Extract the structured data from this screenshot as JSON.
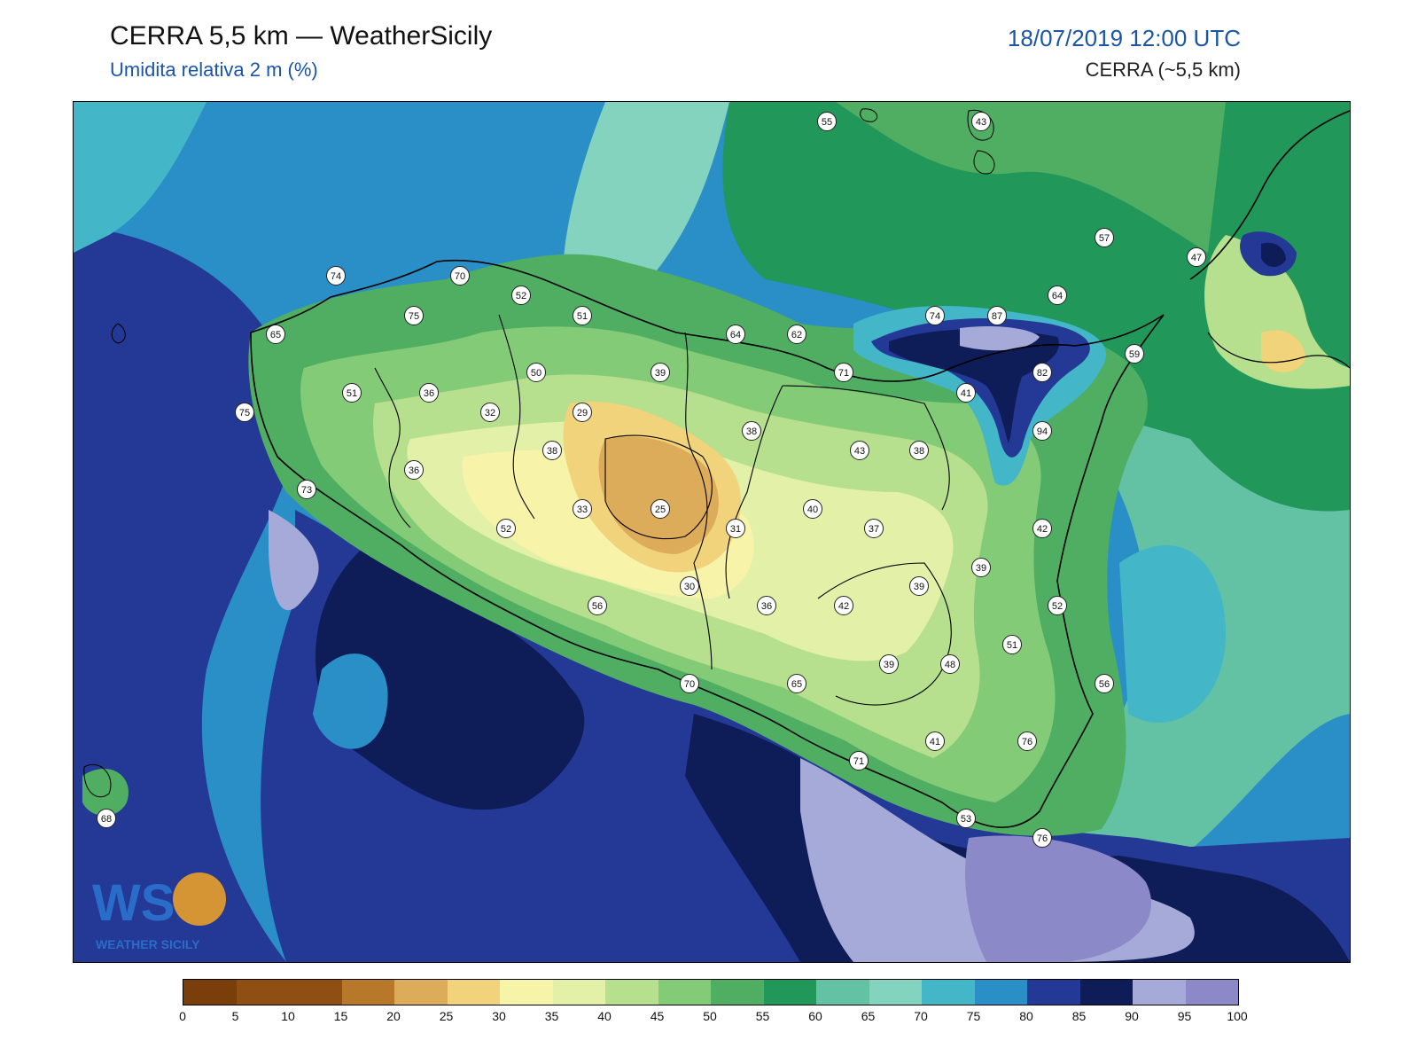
{
  "header": {
    "title": "CERRA 5,5 km — WeatherSicily",
    "subtitle": "Umidita relativa 2 m (%)",
    "datetime": "18/07/2019 12:00 UTC",
    "model": "CERRA (~5,5 km)"
  },
  "colorbar": {
    "ticks": [
      "0",
      "5",
      "10",
      "15",
      "20",
      "25",
      "30",
      "35",
      "40",
      "45",
      "50",
      "55",
      "60",
      "65",
      "70",
      "75",
      "80",
      "85",
      "90",
      "95",
      "100"
    ],
    "colors": [
      "#7a3e0a",
      "#8f4e12",
      "#8f4e12",
      "#b8782a",
      "#ddac5a",
      "#f0d37a",
      "#f7f3a8",
      "#e3f0a8",
      "#b6df8e",
      "#84cb78",
      "#4fae62",
      "#22975a",
      "#63c2a4",
      "#84d3be",
      "#43b6c7",
      "#2a8fc6",
      "#243896",
      "#0e1c58",
      "#a5aad9",
      "#8b89c7"
    ]
  },
  "logo": {
    "letters": "WS",
    "caption": "WEATHER SICILY"
  },
  "stations": [
    {
      "v": "55"
    },
    {
      "v": "43"
    },
    {
      "v": "57"
    },
    {
      "v": "47"
    },
    {
      "v": "64"
    },
    {
      "v": "74"
    },
    {
      "v": "87"
    },
    {
      "v": "59"
    },
    {
      "v": "74"
    },
    {
      "v": "70"
    },
    {
      "v": "52"
    },
    {
      "v": "75"
    },
    {
      "v": "51"
    },
    {
      "v": "64"
    },
    {
      "v": "62"
    },
    {
      "v": "82"
    },
    {
      "v": "65"
    },
    {
      "v": "71"
    },
    {
      "v": "41"
    },
    {
      "v": "50"
    },
    {
      "v": "39"
    },
    {
      "v": "94"
    },
    {
      "v": "51"
    },
    {
      "v": "36"
    },
    {
      "v": "75"
    },
    {
      "v": "32"
    },
    {
      "v": "29"
    },
    {
      "v": "38"
    },
    {
      "v": "43"
    },
    {
      "v": "38"
    },
    {
      "v": "38"
    },
    {
      "v": "36"
    },
    {
      "v": "73"
    },
    {
      "v": "33"
    },
    {
      "v": "25"
    },
    {
      "v": "40"
    },
    {
      "v": "52"
    },
    {
      "v": "31"
    },
    {
      "v": "37"
    },
    {
      "v": "42"
    },
    {
      "v": "39"
    },
    {
      "v": "30"
    },
    {
      "v": "39"
    },
    {
      "v": "56"
    },
    {
      "v": "36"
    },
    {
      "v": "42"
    },
    {
      "v": "52"
    },
    {
      "v": "51"
    },
    {
      "v": "39"
    },
    {
      "v": "48"
    },
    {
      "v": "70"
    },
    {
      "v": "65"
    },
    {
      "v": "56"
    },
    {
      "v": "41"
    },
    {
      "v": "76"
    },
    {
      "v": "71"
    },
    {
      "v": "68"
    },
    {
      "v": "53"
    },
    {
      "v": "76"
    }
  ]
}
